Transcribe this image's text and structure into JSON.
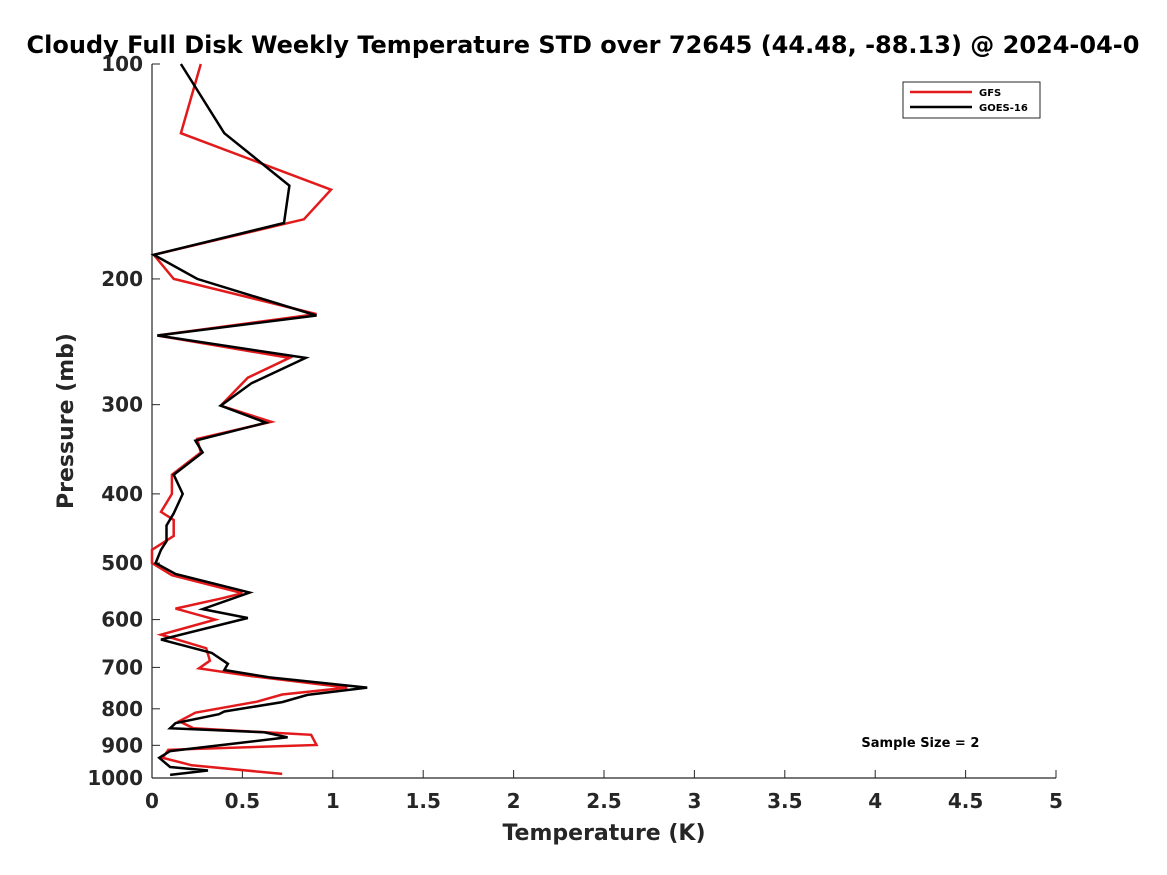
{
  "chart_data": {
    "type": "line",
    "title": "Cloudy Full Disk Weekly Temperature STD over 72645 (44.48, -88.13) @ 2024-04-0",
    "xlabel": "Temperature (K)",
    "ylabel": "Pressure (mb)",
    "xlim": [
      0,
      5
    ],
    "ylim": [
      100,
      1000
    ],
    "yscale": "log",
    "y_reversed": true,
    "grid": false,
    "legend_position": "top-right",
    "x_ticks": [
      {
        "value": 0,
        "label": "0"
      },
      {
        "value": 0.5,
        "label": "0.5"
      },
      {
        "value": 1,
        "label": "1"
      },
      {
        "value": 1.5,
        "label": "1.5"
      },
      {
        "value": 2,
        "label": "2"
      },
      {
        "value": 2.5,
        "label": "2.5"
      },
      {
        "value": 3,
        "label": "3"
      },
      {
        "value": 3.5,
        "label": "3.5"
      },
      {
        "value": 4,
        "label": "4"
      },
      {
        "value": 4.5,
        "label": "4.5"
      },
      {
        "value": 5,
        "label": "5"
      }
    ],
    "y_ticks": [
      {
        "value": 100,
        "label": "100"
      },
      {
        "value": 200,
        "label": "200"
      },
      {
        "value": 300,
        "label": "300"
      },
      {
        "value": 400,
        "label": "400"
      },
      {
        "value": 500,
        "label": "500"
      },
      {
        "value": 600,
        "label": "600"
      },
      {
        "value": 700,
        "label": "700"
      },
      {
        "value": 800,
        "label": "800"
      },
      {
        "value": 900,
        "label": "900"
      },
      {
        "value": 1000,
        "label": "1000"
      }
    ],
    "series": [
      {
        "name": "GFS",
        "color": "#e31a1c",
        "points": [
          [
            0.27,
            100
          ],
          [
            0.16,
            125
          ],
          [
            0.99,
            150
          ],
          [
            0.84,
            165
          ],
          [
            0.01,
            185
          ],
          [
            0.12,
            200
          ],
          [
            0.91,
            224
          ],
          [
            0.03,
            240
          ],
          [
            0.76,
            258
          ],
          [
            0.53,
            275
          ],
          [
            0.38,
            301
          ],
          [
            0.66,
            317
          ],
          [
            0.25,
            335
          ],
          [
            0.27,
            350
          ],
          [
            0.11,
            376
          ],
          [
            0.11,
            400
          ],
          [
            0.05,
            424
          ],
          [
            0.12,
            435
          ],
          [
            0.12,
            458
          ],
          [
            0.0,
            479
          ],
          [
            0.0,
            500
          ],
          [
            0.11,
            520
          ],
          [
            0.5,
            551
          ],
          [
            0.39,
            560
          ],
          [
            0.13,
            579
          ],
          [
            0.35,
            600
          ],
          [
            0.05,
            630
          ],
          [
            0.3,
            658
          ],
          [
            0.32,
            685
          ],
          [
            0.26,
            702
          ],
          [
            0.55,
            720
          ],
          [
            1.08,
            747
          ],
          [
            0.72,
            764
          ],
          [
            0.58,
            782
          ],
          [
            0.24,
            810
          ],
          [
            0.15,
            833
          ],
          [
            0.23,
            852
          ],
          [
            0.88,
            870
          ],
          [
            0.91,
            899
          ],
          [
            0.09,
            913
          ],
          [
            0.06,
            937
          ],
          [
            0.22,
            960
          ],
          [
            0.72,
            987
          ]
        ]
      },
      {
        "name": "GOES-16",
        "color": "#000000",
        "points": [
          [
            0.16,
            100
          ],
          [
            0.4,
            125
          ],
          [
            0.76,
            148
          ],
          [
            0.73,
            167
          ],
          [
            0.01,
            185
          ],
          [
            0.25,
            200
          ],
          [
            0.91,
            225
          ],
          [
            0.03,
            240
          ],
          [
            0.85,
            258
          ],
          [
            0.55,
            280
          ],
          [
            0.38,
            301
          ],
          [
            0.63,
            318
          ],
          [
            0.24,
            337
          ],
          [
            0.28,
            350
          ],
          [
            0.12,
            376
          ],
          [
            0.17,
            400
          ],
          [
            0.12,
            426
          ],
          [
            0.08,
            443
          ],
          [
            0.08,
            466
          ],
          [
            0.05,
            479
          ],
          [
            0.02,
            500
          ],
          [
            0.13,
            518
          ],
          [
            0.54,
            550
          ],
          [
            0.28,
            580
          ],
          [
            0.53,
            597
          ],
          [
            0.05,
            640
          ],
          [
            0.33,
            668
          ],
          [
            0.42,
            692
          ],
          [
            0.4,
            706
          ],
          [
            0.65,
            723
          ],
          [
            1.19,
            747
          ],
          [
            0.86,
            765
          ],
          [
            0.72,
            783
          ],
          [
            0.4,
            807
          ],
          [
            0.37,
            814
          ],
          [
            0.13,
            838
          ],
          [
            0.1,
            852
          ],
          [
            0.62,
            863
          ],
          [
            0.75,
            877
          ],
          [
            0.1,
            917
          ],
          [
            0.04,
            937
          ],
          [
            0.1,
            965
          ],
          [
            0.31,
            976
          ],
          [
            0.1,
            990
          ]
        ]
      }
    ],
    "annotations": [
      {
        "text": "Sample Size = 2",
        "x": 4.25,
        "y": 905
      }
    ]
  }
}
